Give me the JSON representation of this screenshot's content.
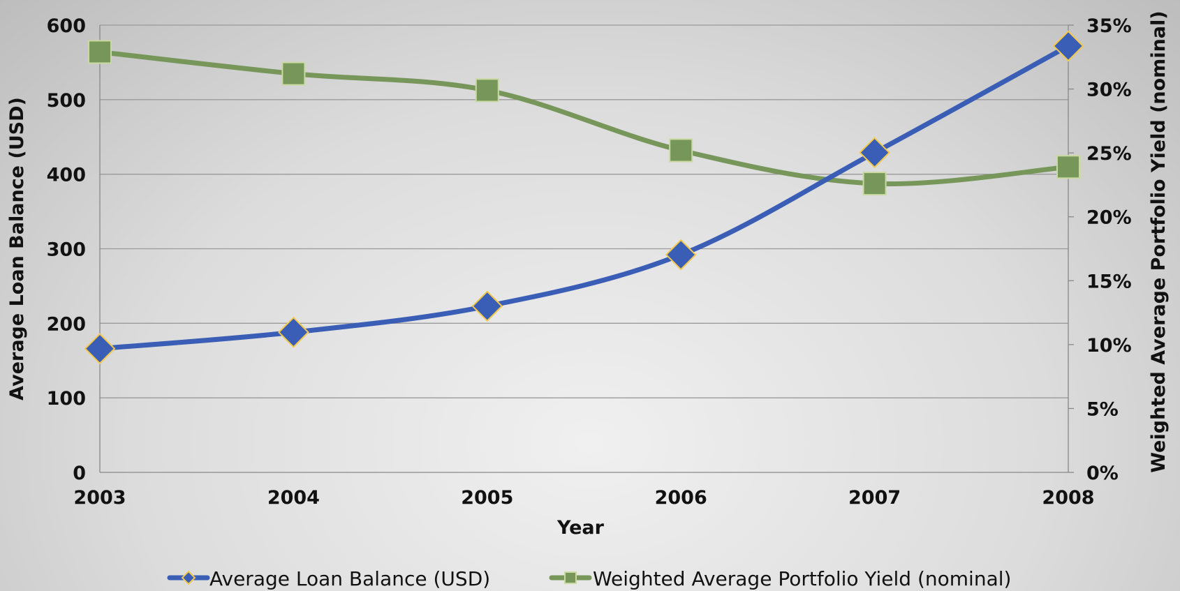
{
  "chart_data": {
    "type": "line",
    "x": [
      2003,
      2004,
      2005,
      2006,
      2007,
      2008
    ],
    "xlabel": "Year",
    "y_axis_left": {
      "label": "Average Loan Balance (USD)",
      "range": [
        0,
        600
      ],
      "ticks": [
        0,
        100,
        200,
        300,
        400,
        500,
        600
      ],
      "tick_labels": [
        "0",
        "100",
        "200",
        "300",
        "400",
        "500",
        "600"
      ]
    },
    "y_axis_right": {
      "label": "Weighted Average Portfolio Yield (nominal)",
      "range": [
        0,
        0.35
      ],
      "ticks": [
        0,
        0.05,
        0.1,
        0.15,
        0.2,
        0.25,
        0.3,
        0.35
      ],
      "tick_labels": [
        "0%",
        "5%",
        "10%",
        "15%",
        "20%",
        "25%",
        "30%",
        "35%"
      ]
    },
    "series": [
      {
        "name": "Average Loan Balance (USD)",
        "axis": "left",
        "marker": "diamond",
        "color": "#3A5DB5",
        "marker_edge": "#F2C94C",
        "values": [
          166,
          188,
          223,
          292,
          429,
          572
        ]
      },
      {
        "name": "Weighted Average Portfolio Yield (nominal)",
        "axis": "right",
        "marker": "square",
        "color": "#77965A",
        "marker_edge": "#C9D9A0",
        "values": [
          0.329,
          0.312,
          0.299,
          0.252,
          0.226,
          0.239
        ]
      }
    ],
    "grid": "horizontal",
    "legend_position": "bottom"
  }
}
